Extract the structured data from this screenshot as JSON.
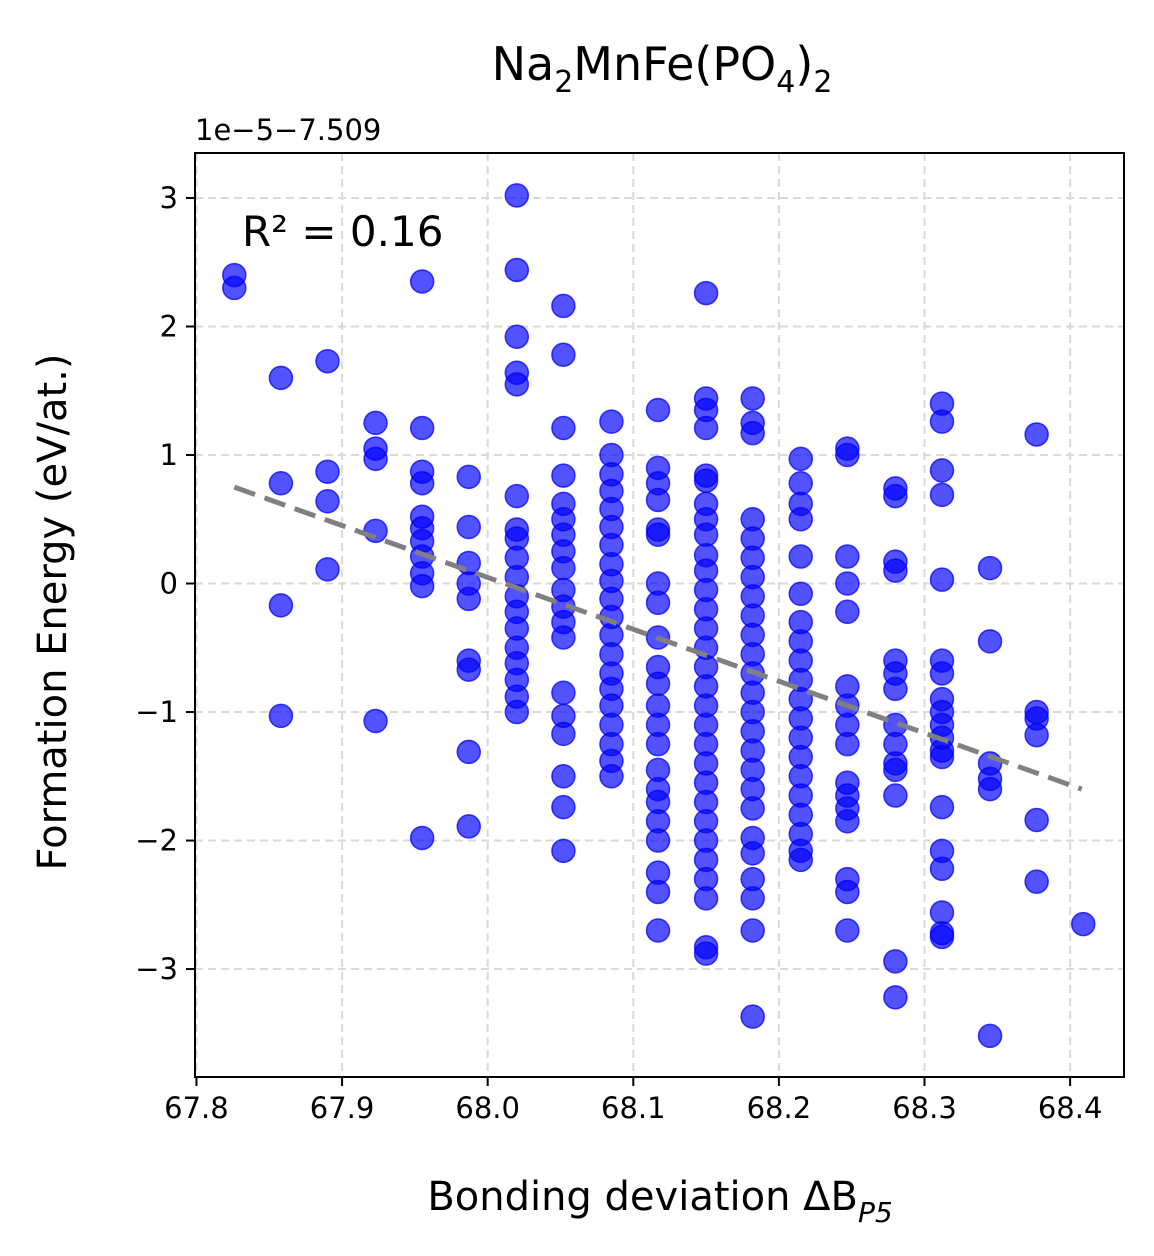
{
  "chart_data": {
    "type": "scatter",
    "title": {
      "base": "Na",
      "s1": "2",
      "mid": "MnFe(PO",
      "s2": "4",
      "end": ")",
      "s3": "2"
    },
    "xlabel": {
      "base": "Bonding deviation ΔB",
      "sub": "P5"
    },
    "ylabel": "Formation Energy (eV/at.)",
    "offset_text": "1e−5−7.509",
    "annotation": "R² = 0.16",
    "xlim": [
      67.799,
      68.437
    ],
    "ylim": [
      -3.84,
      3.35
    ],
    "xticks": [
      67.8,
      67.9,
      68.0,
      68.1,
      68.2,
      68.3,
      68.4
    ],
    "xtick_labels": [
      "67.8",
      "67.9",
      "68.0",
      "68.1",
      "68.2",
      "68.3",
      "68.4"
    ],
    "yticks": [
      -3,
      -2,
      -1,
      0,
      1,
      2,
      3
    ],
    "ytick_labels": [
      "−3",
      "−2",
      "−1",
      "0",
      "1",
      "2",
      "3"
    ],
    "grid": true,
    "point_color": "#0000ff",
    "fit_color": "#808080",
    "fit_line": {
      "x": [
        67.826,
        68.408
      ],
      "y": [
        0.75,
        -1.6
      ]
    },
    "series": [
      {
        "points": [
          [
            67.826,
            2.4
          ],
          [
            67.826,
            2.3
          ],
          [
            67.858,
            1.6
          ],
          [
            67.858,
            0.78
          ],
          [
            67.858,
            -0.17
          ],
          [
            67.858,
            -1.03
          ],
          [
            67.89,
            1.73
          ],
          [
            67.89,
            0.87
          ],
          [
            67.89,
            0.64
          ],
          [
            67.89,
            0.11
          ],
          [
            67.923,
            1.25
          ],
          [
            67.923,
            1.05
          ],
          [
            67.923,
            0.97
          ],
          [
            67.923,
            0.41
          ],
          [
            67.923,
            -1.07
          ],
          [
            67.955,
            2.35
          ],
          [
            67.955,
            1.21
          ],
          [
            67.955,
            0.87
          ],
          [
            67.955,
            0.78
          ],
          [
            67.955,
            0.52
          ],
          [
            67.955,
            0.43
          ],
          [
            67.955,
            0.33
          ],
          [
            67.955,
            0.21
          ],
          [
            67.955,
            0.08
          ],
          [
            67.955,
            -0.02
          ],
          [
            67.955,
            -1.98
          ],
          [
            67.987,
            0.83
          ],
          [
            67.987,
            0.44
          ],
          [
            67.987,
            0.16
          ],
          [
            67.987,
            0.0
          ],
          [
            67.987,
            -0.12
          ],
          [
            67.987,
            -0.6
          ],
          [
            67.987,
            -0.67
          ],
          [
            67.987,
            -1.31
          ],
          [
            67.987,
            -1.89
          ],
          [
            68.02,
            3.02
          ],
          [
            68.02,
            2.44
          ],
          [
            68.02,
            1.92
          ],
          [
            68.02,
            1.64
          ],
          [
            68.02,
            1.55
          ],
          [
            68.02,
            0.68
          ],
          [
            68.02,
            0.42
          ],
          [
            68.02,
            0.35
          ],
          [
            68.02,
            0.2
          ],
          [
            68.02,
            0.05
          ],
          [
            68.02,
            -0.1
          ],
          [
            68.02,
            -0.22
          ],
          [
            68.02,
            -0.35
          ],
          [
            68.02,
            -0.5
          ],
          [
            68.02,
            -0.62
          ],
          [
            68.02,
            -0.75
          ],
          [
            68.02,
            -0.88
          ],
          [
            68.02,
            -1.0
          ],
          [
            68.052,
            2.16
          ],
          [
            68.052,
            1.78
          ],
          [
            68.052,
            1.21
          ],
          [
            68.052,
            0.84
          ],
          [
            68.052,
            0.62
          ],
          [
            68.052,
            0.5
          ],
          [
            68.052,
            0.38
          ],
          [
            68.052,
            0.25
          ],
          [
            68.052,
            0.12
          ],
          [
            68.052,
            -0.05
          ],
          [
            68.052,
            -0.18
          ],
          [
            68.052,
            -0.3
          ],
          [
            68.052,
            -0.42
          ],
          [
            68.052,
            -0.85
          ],
          [
            68.052,
            -1.03
          ],
          [
            68.052,
            -1.17
          ],
          [
            68.052,
            -1.5
          ],
          [
            68.052,
            -1.74
          ],
          [
            68.052,
            -2.08
          ],
          [
            68.085,
            1.26
          ],
          [
            68.085,
            1.0
          ],
          [
            68.085,
            0.85
          ],
          [
            68.085,
            0.72
          ],
          [
            68.085,
            0.58
          ],
          [
            68.085,
            0.44
          ],
          [
            68.085,
            0.3
          ],
          [
            68.085,
            0.15
          ],
          [
            68.085,
            0.02
          ],
          [
            68.085,
            -0.12
          ],
          [
            68.085,
            -0.26
          ],
          [
            68.085,
            -0.4
          ],
          [
            68.085,
            -0.55
          ],
          [
            68.085,
            -0.7
          ],
          [
            68.085,
            -0.82
          ],
          [
            68.085,
            -0.95
          ],
          [
            68.085,
            -1.1
          ],
          [
            68.085,
            -1.25
          ],
          [
            68.085,
            -1.38
          ],
          [
            68.085,
            -1.5
          ],
          [
            68.117,
            1.35
          ],
          [
            68.117,
            0.9
          ],
          [
            68.117,
            0.78
          ],
          [
            68.117,
            0.65
          ],
          [
            68.117,
            0.42
          ],
          [
            68.117,
            0.38
          ],
          [
            68.117,
            0.0
          ],
          [
            68.117,
            -0.15
          ],
          [
            68.117,
            -0.42
          ],
          [
            68.117,
            -0.65
          ],
          [
            68.117,
            -0.78
          ],
          [
            68.117,
            -0.95
          ],
          [
            68.117,
            -1.1
          ],
          [
            68.117,
            -1.25
          ],
          [
            68.117,
            -1.45
          ],
          [
            68.117,
            -1.6
          ],
          [
            68.117,
            -1.7
          ],
          [
            68.117,
            -1.85
          ],
          [
            68.117,
            -2.0
          ],
          [
            68.117,
            -2.25
          ],
          [
            68.117,
            -2.4
          ],
          [
            68.117,
            -2.7
          ],
          [
            68.15,
            2.26
          ],
          [
            68.15,
            1.44
          ],
          [
            68.15,
            1.35
          ],
          [
            68.15,
            1.21
          ],
          [
            68.15,
            0.84
          ],
          [
            68.15,
            0.8
          ],
          [
            68.15,
            0.62
          ],
          [
            68.15,
            0.5
          ],
          [
            68.15,
            0.38
          ],
          [
            68.15,
            0.22
          ],
          [
            68.15,
            0.1
          ],
          [
            68.15,
            -0.05
          ],
          [
            68.15,
            -0.2
          ],
          [
            68.15,
            -0.35
          ],
          [
            68.15,
            -0.5
          ],
          [
            68.15,
            -0.65
          ],
          [
            68.15,
            -0.8
          ],
          [
            68.15,
            -0.95
          ],
          [
            68.15,
            -1.1
          ],
          [
            68.15,
            -1.25
          ],
          [
            68.15,
            -1.4
          ],
          [
            68.15,
            -1.55
          ],
          [
            68.15,
            -1.7
          ],
          [
            68.15,
            -1.85
          ],
          [
            68.15,
            -2.0
          ],
          [
            68.15,
            -2.15
          ],
          [
            68.15,
            -2.3
          ],
          [
            68.15,
            -2.45
          ],
          [
            68.15,
            -2.83
          ],
          [
            68.15,
            -2.88
          ],
          [
            68.182,
            1.44
          ],
          [
            68.182,
            1.25
          ],
          [
            68.182,
            1.17
          ],
          [
            68.182,
            0.5
          ],
          [
            68.182,
            0.35
          ],
          [
            68.182,
            0.2
          ],
          [
            68.182,
            0.05
          ],
          [
            68.182,
            -0.1
          ],
          [
            68.182,
            -0.25
          ],
          [
            68.182,
            -0.4
          ],
          [
            68.182,
            -0.55
          ],
          [
            68.182,
            -0.7
          ],
          [
            68.182,
            -0.85
          ],
          [
            68.182,
            -1.0
          ],
          [
            68.182,
            -1.15
          ],
          [
            68.182,
            -1.3
          ],
          [
            68.182,
            -1.45
          ],
          [
            68.182,
            -1.6
          ],
          [
            68.182,
            -1.75
          ],
          [
            68.182,
            -1.98
          ],
          [
            68.182,
            -2.1
          ],
          [
            68.182,
            -2.3
          ],
          [
            68.182,
            -2.45
          ],
          [
            68.182,
            -2.7
          ],
          [
            68.182,
            -3.37
          ],
          [
            68.215,
            0.97
          ],
          [
            68.215,
            0.78
          ],
          [
            68.215,
            0.62
          ],
          [
            68.215,
            0.5
          ],
          [
            68.215,
            0.21
          ],
          [
            68.215,
            -0.08
          ],
          [
            68.215,
            -0.3
          ],
          [
            68.215,
            -0.45
          ],
          [
            68.215,
            -0.6
          ],
          [
            68.215,
            -0.75
          ],
          [
            68.215,
            -0.9
          ],
          [
            68.215,
            -1.05
          ],
          [
            68.215,
            -1.2
          ],
          [
            68.215,
            -1.35
          ],
          [
            68.215,
            -1.5
          ],
          [
            68.215,
            -1.65
          ],
          [
            68.215,
            -1.8
          ],
          [
            68.215,
            -1.95
          ],
          [
            68.215,
            -2.08
          ],
          [
            68.215,
            -2.15
          ],
          [
            68.247,
            1.05
          ],
          [
            68.247,
            1.0
          ],
          [
            68.247,
            0.21
          ],
          [
            68.247,
            0.0
          ],
          [
            68.247,
            -0.22
          ],
          [
            68.247,
            -0.8
          ],
          [
            68.247,
            -0.95
          ],
          [
            68.247,
            -1.1
          ],
          [
            68.247,
            -1.25
          ],
          [
            68.247,
            -1.55
          ],
          [
            68.247,
            -1.65
          ],
          [
            68.247,
            -1.75
          ],
          [
            68.247,
            -1.85
          ],
          [
            68.247,
            -2.3
          ],
          [
            68.247,
            -2.4
          ],
          [
            68.247,
            -2.7
          ],
          [
            68.28,
            0.74
          ],
          [
            68.28,
            0.68
          ],
          [
            68.28,
            0.17
          ],
          [
            68.28,
            0.1
          ],
          [
            68.28,
            -0.6
          ],
          [
            68.28,
            -0.7
          ],
          [
            68.28,
            -0.82
          ],
          [
            68.28,
            -1.1
          ],
          [
            68.28,
            -1.25
          ],
          [
            68.28,
            -1.4
          ],
          [
            68.28,
            -1.45
          ],
          [
            68.28,
            -1.65
          ],
          [
            68.28,
            -2.94
          ],
          [
            68.28,
            -3.22
          ],
          [
            68.312,
            1.4
          ],
          [
            68.312,
            1.26
          ],
          [
            68.312,
            0.88
          ],
          [
            68.312,
            0.69
          ],
          [
            68.312,
            0.03
          ],
          [
            68.312,
            -0.6
          ],
          [
            68.312,
            -0.7
          ],
          [
            68.312,
            -0.9
          ],
          [
            68.312,
            -1.0
          ],
          [
            68.312,
            -1.1
          ],
          [
            68.312,
            -1.2
          ],
          [
            68.312,
            -1.3
          ],
          [
            68.312,
            -1.35
          ],
          [
            68.312,
            -1.74
          ],
          [
            68.312,
            -2.08
          ],
          [
            68.312,
            -2.22
          ],
          [
            68.312,
            -2.56
          ],
          [
            68.312,
            -2.72
          ],
          [
            68.312,
            -2.75
          ],
          [
            68.345,
            0.12
          ],
          [
            68.345,
            -0.45
          ],
          [
            68.345,
            -1.4
          ],
          [
            68.345,
            -1.52
          ],
          [
            68.345,
            -1.6
          ],
          [
            68.345,
            -3.52
          ],
          [
            68.377,
            1.16
          ],
          [
            68.377,
            -1.0
          ],
          [
            68.377,
            -1.05
          ],
          [
            68.377,
            -1.18
          ],
          [
            68.377,
            -1.84
          ],
          [
            68.377,
            -2.32
          ],
          [
            68.409,
            -2.65
          ]
        ]
      }
    ]
  }
}
